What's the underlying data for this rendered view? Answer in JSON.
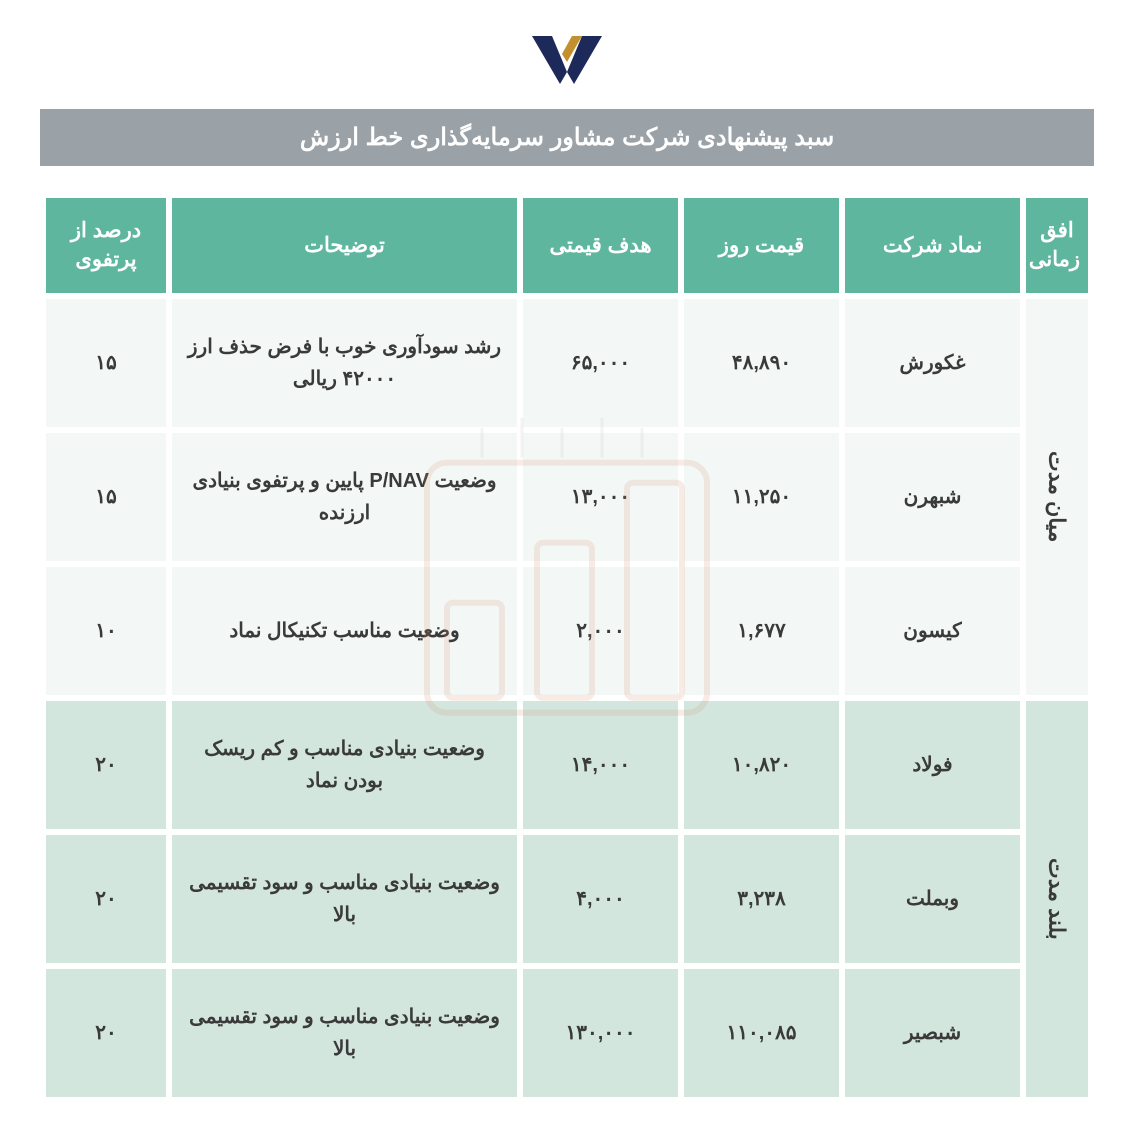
{
  "title": "سبد پیشنهادی شرکت مشاور سرمایه‌گذاری خط ارزش",
  "colors": {
    "header_bg": "#5fb69f",
    "header_fg": "#ffffff",
    "title_bg": "#9aa2a8",
    "title_fg": "#ffffff",
    "row_group1_bg": "#f3f8f6",
    "row_group2_bg": "#d2e6de",
    "text": "#3a3a3a",
    "logo_navy": "#1d2a59",
    "logo_gold": "#c2902f",
    "watermark": "#d9886a"
  },
  "columns": {
    "horizon": "افق زمانی",
    "symbol": "نماد شرکت",
    "day_price": "قیمت روز",
    "target_price": "هدف قیمتی",
    "description": "توضیحات",
    "portfolio_pct": "درصد از پرتفوی"
  },
  "groups": [
    {
      "horizon": "میان مدت",
      "class": "g1",
      "rows": [
        {
          "symbol": "غکورش",
          "day_price": "۴۸,۸۹۰",
          "target_price": "۶۵,۰۰۰",
          "description": "رشد سودآوری خوب با فرض حذف ارز ۴۲۰۰۰ ریالی",
          "pct": "۱۵"
        },
        {
          "symbol": "شبهرن",
          "day_price": "۱۱,۲۵۰",
          "target_price": "۱۳,۰۰۰",
          "description": "وضعیت P/NAV پایین و پرتفوی بنیادی ارزنده",
          "pct": "۱۵"
        },
        {
          "symbol": "کیسون",
          "day_price": "۱,۶۷۷",
          "target_price": "۲,۰۰۰",
          "description": "وضعیت مناسب تکنیکال نماد",
          "pct": "۱۰"
        }
      ]
    },
    {
      "horizon": "بلند مدت",
      "class": "g2",
      "rows": [
        {
          "symbol": "فولاد",
          "day_price": "۱۰,۸۲۰",
          "target_price": "۱۴,۰۰۰",
          "description": "وضعیت بنیادی مناسب و کم ریسک بودن نماد",
          "pct": "۲۰"
        },
        {
          "symbol": "وبملت",
          "day_price": "۳,۲۳۸",
          "target_price": "۴,۰۰۰",
          "description": "وضعیت بنیادی مناسب و سود تقسیمی بالا",
          "pct": "۲۰"
        },
        {
          "symbol": "شبصیر",
          "day_price": "۱۱۰,۰۸۵",
          "target_price": "۱۳۰,۰۰۰",
          "description": "وضعیت بنیادی مناسب و سود تقسیمی بالا",
          "pct": "۲۰"
        }
      ]
    }
  ]
}
